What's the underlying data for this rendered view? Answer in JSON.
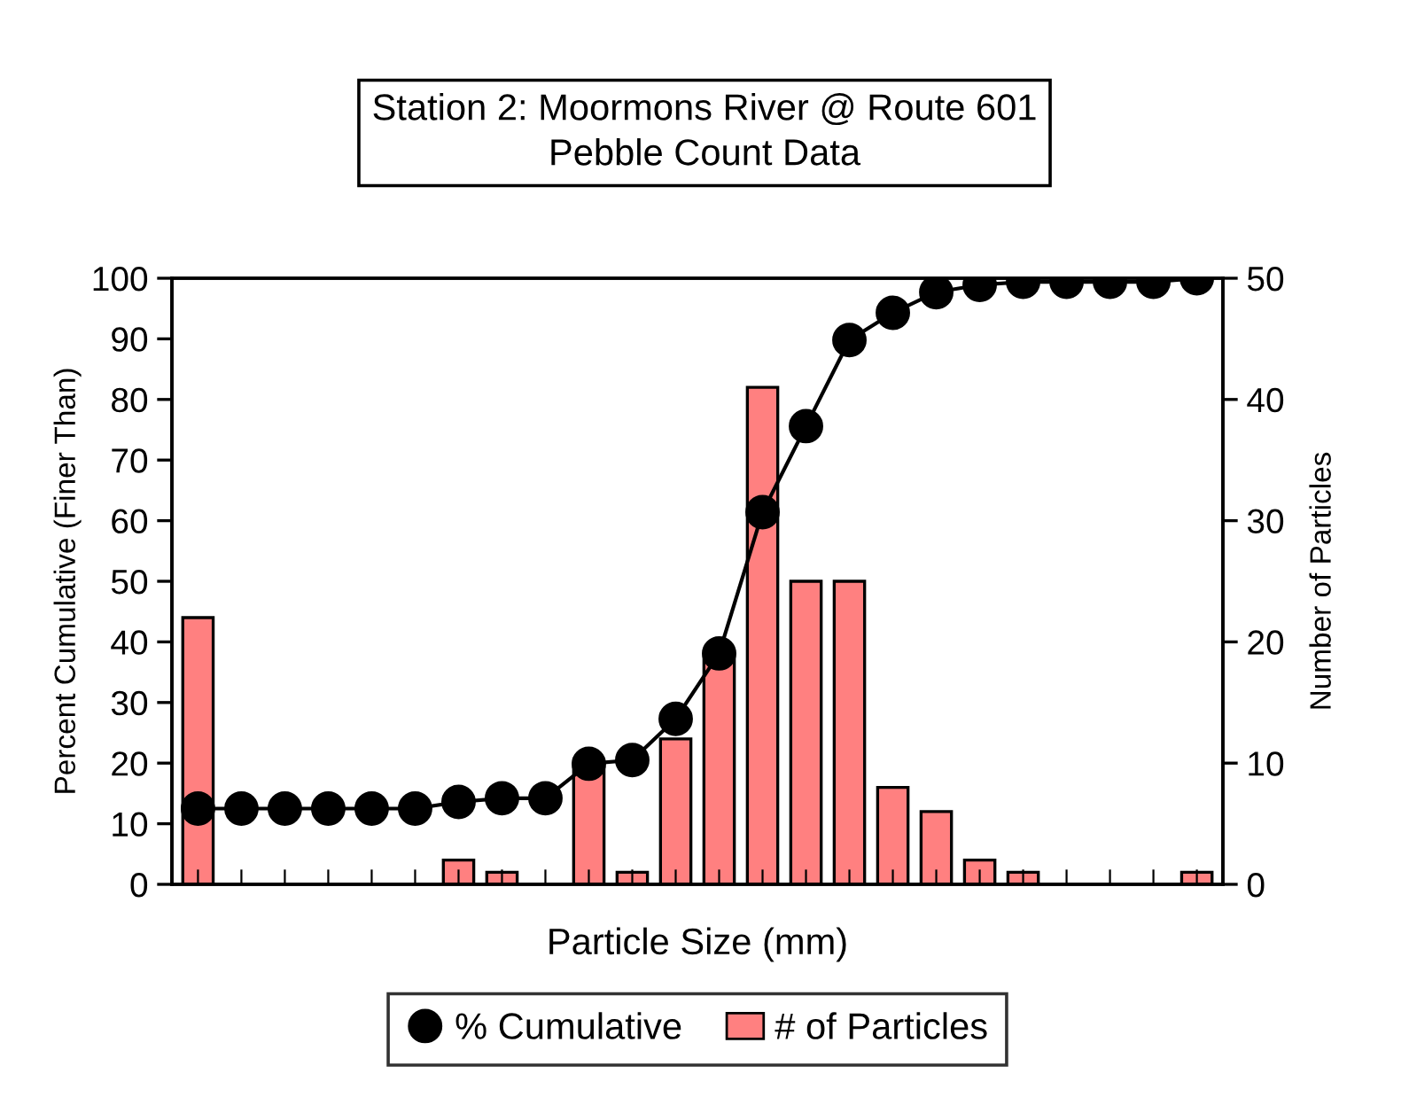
{
  "chart_data": {
    "type": "bar",
    "title": "Station 2: Moormons River @ Route 601\nPebble Count Data",
    "xlabel": "Particle Size (mm)",
    "ylabel": "Percent Cumulative (Finer Than)",
    "y2label": "Number of Particles",
    "categories": [
      null,
      null,
      null,
      null,
      null,
      null,
      null,
      null,
      null,
      null,
      null,
      null,
      null,
      null,
      null,
      null,
      null,
      null,
      null,
      null,
      null,
      null,
      null,
      null
    ],
    "series": [
      {
        "name": "% Cumulative",
        "type": "line",
        "color": "#000000",
        "marker": "circle",
        "values": [
          12.5,
          12.5,
          12.5,
          12.5,
          12.5,
          12.5,
          13.6,
          14.2,
          14.2,
          19.9,
          20.5,
          27.3,
          38.1,
          61.4,
          75.6,
          89.8,
          94.3,
          97.7,
          98.9,
          99.4,
          99.4,
          99.4,
          99.4,
          100
        ]
      },
      {
        "name": "# of Particles",
        "axis": "y2",
        "color": "#ff8080",
        "values": [
          22,
          0,
          0,
          0,
          0,
          0,
          2,
          1,
          0,
          10,
          1,
          12,
          19,
          41,
          25,
          25,
          8,
          6,
          2,
          1,
          0,
          0,
          0,
          1
        ]
      }
    ],
    "ylim": [
      0,
      100
    ],
    "yticks": [
      0,
      10,
      20,
      30,
      40,
      50,
      60,
      70,
      80,
      90,
      100
    ],
    "y2lim": [
      0,
      50
    ],
    "y2ticks": [
      0,
      10,
      20,
      30,
      40,
      50
    ],
    "tick_labels": "y",
    "grid": false,
    "legend": "bottom"
  }
}
